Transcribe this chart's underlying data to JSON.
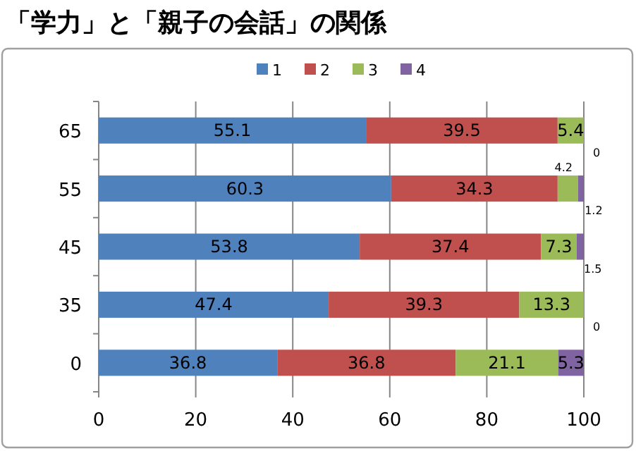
{
  "chart_data": {
    "type": "bar",
    "orientation": "horizontal",
    "stacked": true,
    "title": "「学力」と「親子の会話」の関係",
    "categories": [
      "65",
      "55",
      "45",
      "35",
      "0"
    ],
    "series": [
      {
        "name": "1",
        "color": "#4f81bd",
        "values": [
          55.1,
          60.3,
          53.8,
          47.4,
          36.8
        ]
      },
      {
        "name": "2",
        "color": "#c0504d",
        "values": [
          39.5,
          34.3,
          37.4,
          39.3,
          36.8
        ]
      },
      {
        "name": "3",
        "color": "#9bbb59",
        "values": [
          5.4,
          4.2,
          7.3,
          13.3,
          21.1
        ]
      },
      {
        "name": "4",
        "color": "#8064a2",
        "values": [
          0,
          1.2,
          1.5,
          0,
          5.3
        ]
      }
    ],
    "xlim": [
      0,
      100
    ],
    "xticks": [
      0,
      20,
      40,
      60,
      80,
      100
    ],
    "grid": "x",
    "legend": "top",
    "data_labels": true
  }
}
